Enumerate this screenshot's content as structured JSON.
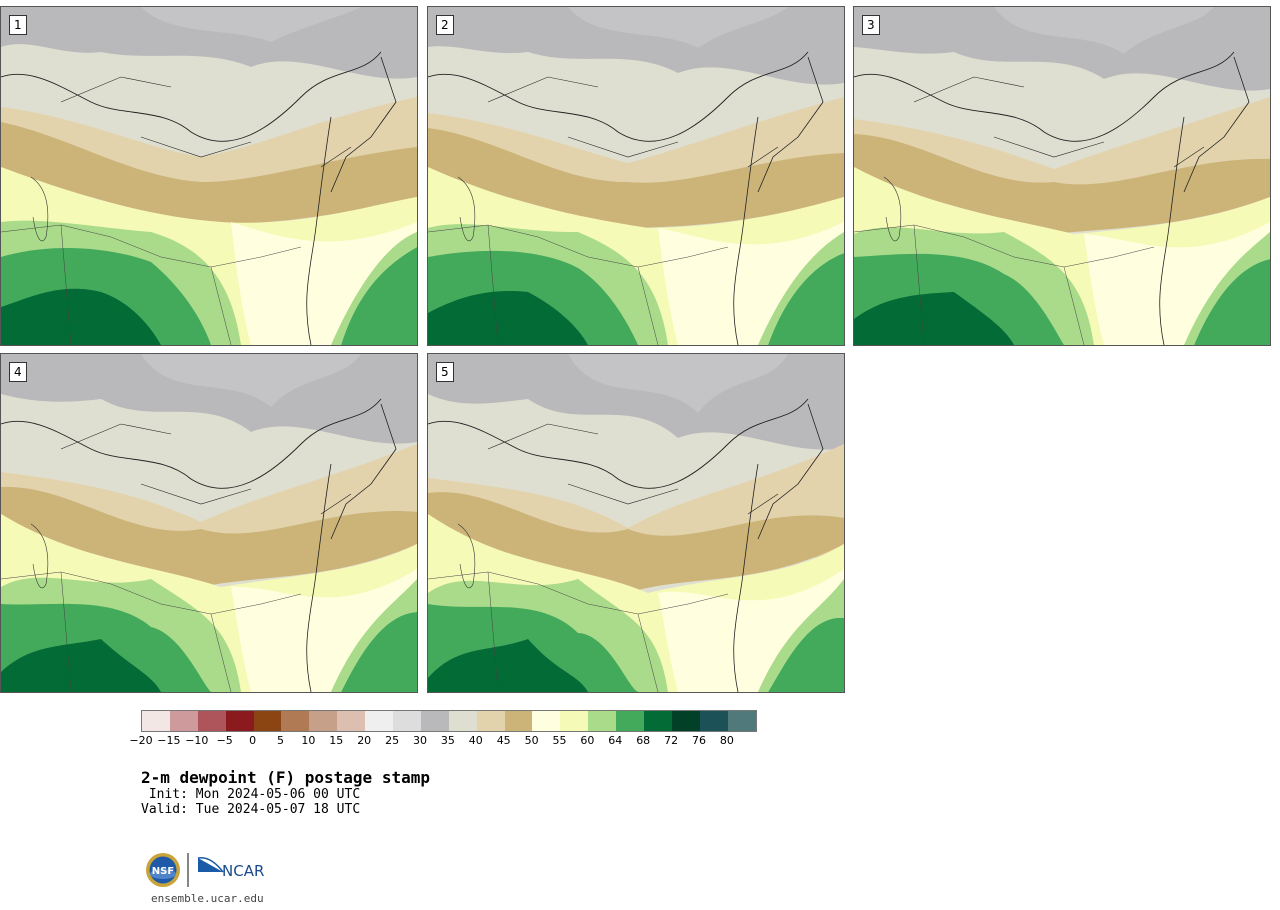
{
  "panels": [
    {
      "label": "1"
    },
    {
      "label": "2"
    },
    {
      "label": "3"
    },
    {
      "label": "4"
    },
    {
      "label": "5"
    }
  ],
  "colorbar": {
    "colors": [
      "#f3e7e6",
      "#cf9a9c",
      "#ae555b",
      "#8b1a1e",
      "#8b4513",
      "#b07a55",
      "#c7a08a",
      "#ddbfb2",
      "#efefef",
      "#dddddd",
      "#b9b9bb",
      "#dfdfd1",
      "#e2d3ad",
      "#ccb479",
      "#ffffe0",
      "#f6fab7",
      "#a9db8b",
      "#43aa5b",
      "#036b36",
      "#024028",
      "#1c5158",
      "#4f797b"
    ],
    "ticks": [
      "−20",
      "−15",
      "−10",
      "−5",
      "0",
      "5",
      "10",
      "15",
      "20",
      "25",
      "30",
      "35",
      "40",
      "45",
      "50",
      "55",
      "60",
      "64",
      "68",
      "72",
      "76",
      "80"
    ]
  },
  "title": "2-m dewpoint (F) postage stamp",
  "init": " Init: Mon 2024-05-06 00 UTC",
  "valid": "Valid: Tue 2024-05-07 18 UTC",
  "footer": {
    "url": "ensemble.ucar.edu",
    "nsf_logo": "NSF",
    "ncar_logo": "NCAR"
  }
}
